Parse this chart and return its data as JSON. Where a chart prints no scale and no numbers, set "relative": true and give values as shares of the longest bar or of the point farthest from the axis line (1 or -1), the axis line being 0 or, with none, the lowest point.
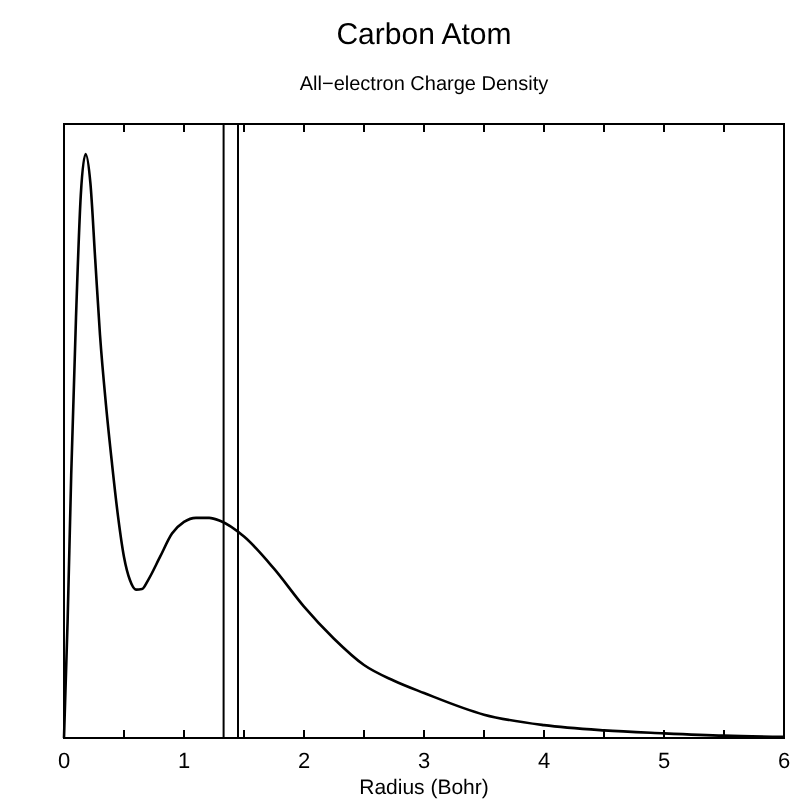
{
  "chart_data": {
    "type": "line",
    "title": "Carbon Atom",
    "subtitle": "All−electron Charge Density",
    "xlabel": "Radius (Bohr)",
    "relative": true,
    "color": "#000000",
    "x": [
      0,
      0.03,
      0.06,
      0.1,
      0.14,
      0.18,
      0.22,
      0.26,
      0.3,
      0.35,
      0.4,
      0.45,
      0.5,
      0.55,
      0.6,
      0.65,
      0.7,
      0.8,
      0.9,
      1.0,
      1.1,
      1.21,
      1.3,
      1.5,
      1.75,
      2,
      2.25,
      2.5,
      2.75,
      3,
      3.5,
      4,
      4.5,
      5,
      5.5,
      6
    ],
    "values": [
      0,
      0.2,
      0.45,
      0.72,
      0.93,
      1,
      0.95,
      0.82,
      0.69,
      0.57,
      0.47,
      0.38,
      0.31,
      0.27,
      0.254,
      0.255,
      0.27,
      0.31,
      0.35,
      0.37,
      0.377,
      0.377,
      0.372,
      0.345,
      0.29,
      0.225,
      0.17,
      0.125,
      0.098,
      0.077,
      0.04,
      0.022,
      0.013,
      0.008,
      0.004,
      0.002
    ],
    "xlim": [
      0,
      6
    ],
    "xticks": [
      0,
      {
        "value": 0.5,
        "label": null
      },
      1,
      {
        "value": 1.5,
        "label": null
      },
      2,
      {
        "value": 2.5,
        "label": null
      },
      3,
      {
        "value": 3.5,
        "label": null
      },
      4,
      {
        "value": 4.5,
        "label": null
      },
      5,
      {
        "value": 5.5,
        "label": null
      },
      6
    ],
    "ref_lines": [
      {
        "axis": "x",
        "value": 1.33,
        "color": "#000000"
      },
      {
        "axis": "x",
        "value": 1.45,
        "color": "#000000"
      }
    ],
    "grid": false,
    "marker": "none",
    "line_style": "solid"
  }
}
